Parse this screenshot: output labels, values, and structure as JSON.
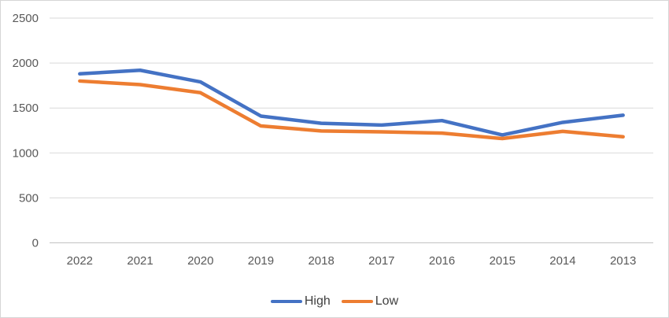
{
  "chart_data": {
    "type": "line",
    "categories": [
      "2022",
      "2021",
      "2020",
      "2019",
      "2018",
      "2017",
      "2016",
      "2015",
      "2014",
      "2013"
    ],
    "series": [
      {
        "name": "High",
        "color": "#4472C4",
        "values": [
          1880,
          1920,
          1790,
          1410,
          1330,
          1310,
          1360,
          1200,
          1340,
          1420
        ]
      },
      {
        "name": "Low",
        "color": "#ED7D31",
        "values": [
          1800,
          1760,
          1670,
          1300,
          1245,
          1235,
          1220,
          1160,
          1240,
          1180
        ]
      }
    ],
    "title": "",
    "xlabel": "",
    "ylabel": "",
    "ylim": [
      0,
      2500
    ],
    "yticks": [
      0,
      500,
      1000,
      1500,
      2000,
      2500
    ],
    "grid": true,
    "legend_position": "bottom"
  },
  "style": {
    "gridline_color": "#d9d9d9",
    "axis_line_color": "#c3c3c3",
    "tick_text_color": "#595959",
    "legend_text_color": "#404040",
    "frame_border_color": "#d6d6d6",
    "background_color": "#ffffff"
  }
}
